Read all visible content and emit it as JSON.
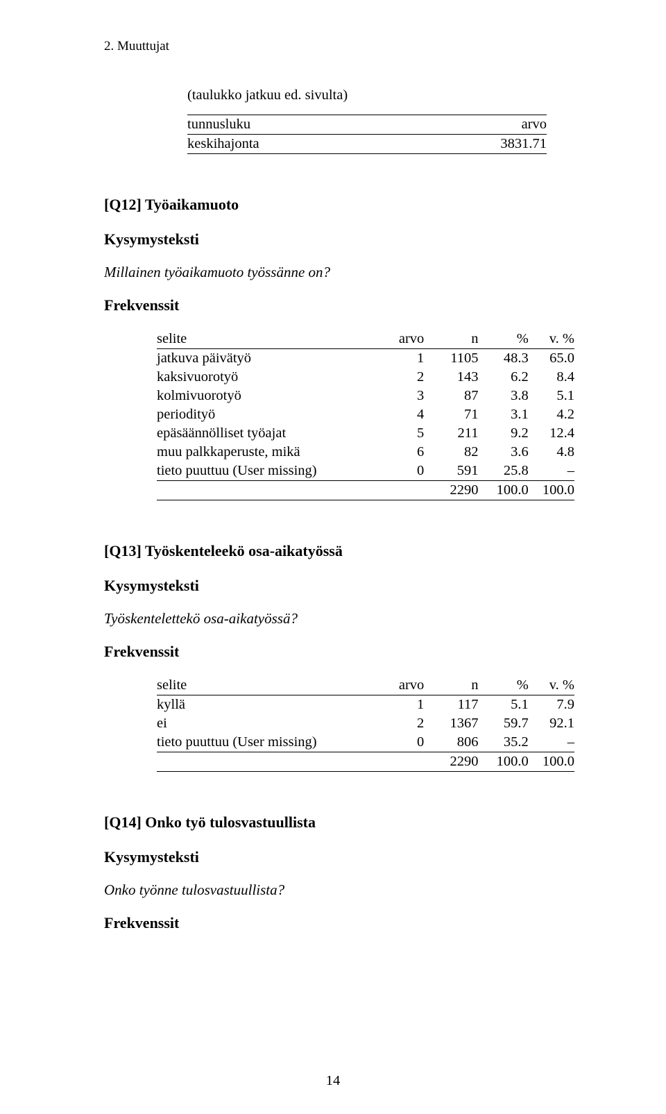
{
  "running_head": "2. Muuttujat",
  "cont_caption": "(taulukko jatkuu ed. sivulta)",
  "kv_table": {
    "headers": [
      "tunnusluku",
      "arvo"
    ],
    "rows": [
      {
        "label": "keskihajonta",
        "value": "3831.71"
      }
    ]
  },
  "q12": {
    "title": "[Q12] Työaikamuoto",
    "kys_label": "Kysymysteksti",
    "question": "Millainen työaikamuoto työssänne on?",
    "freq_label": "Frekvenssit",
    "headers": {
      "selite": "selite",
      "arvo": "arvo",
      "n": "n",
      "pct": "%",
      "vpct": "v. %"
    },
    "rows": [
      {
        "selite": "jatkuva päivätyö",
        "arvo": "1",
        "n": "1105",
        "pct": "48.3",
        "vpct": "65.0"
      },
      {
        "selite": "kaksivuorotyö",
        "arvo": "2",
        "n": "143",
        "pct": "6.2",
        "vpct": "8.4"
      },
      {
        "selite": "kolmivuorotyö",
        "arvo": "3",
        "n": "87",
        "pct": "3.8",
        "vpct": "5.1"
      },
      {
        "selite": "periodityö",
        "arvo": "4",
        "n": "71",
        "pct": "3.1",
        "vpct": "4.2"
      },
      {
        "selite": "epäsäännölliset työajat",
        "arvo": "5",
        "n": "211",
        "pct": "9.2",
        "vpct": "12.4"
      },
      {
        "selite": "muu palkkaperuste, mikä",
        "arvo": "6",
        "n": "82",
        "pct": "3.6",
        "vpct": "4.8"
      },
      {
        "selite": "tieto puuttuu (User missing)",
        "arvo": "0",
        "n": "591",
        "pct": "25.8",
        "vpct": "–"
      }
    ],
    "total": {
      "n": "2290",
      "pct": "100.0",
      "vpct": "100.0"
    }
  },
  "q13": {
    "title": "[Q13] Työskenteleekö osa-aikatyössä",
    "kys_label": "Kysymysteksti",
    "question": "Työskentelettekö osa-aikatyössä?",
    "freq_label": "Frekvenssit",
    "headers": {
      "selite": "selite",
      "arvo": "arvo",
      "n": "n",
      "pct": "%",
      "vpct": "v. %"
    },
    "rows": [
      {
        "selite": "kyllä",
        "arvo": "1",
        "n": "117",
        "pct": "5.1",
        "vpct": "7.9"
      },
      {
        "selite": "ei",
        "arvo": "2",
        "n": "1367",
        "pct": "59.7",
        "vpct": "92.1"
      },
      {
        "selite": "tieto puuttuu (User missing)",
        "arvo": "0",
        "n": "806",
        "pct": "35.2",
        "vpct": "–"
      }
    ],
    "total": {
      "n": "2290",
      "pct": "100.0",
      "vpct": "100.0"
    }
  },
  "q14": {
    "title": "[Q14] Onko työ tulosvastuullista",
    "kys_label": "Kysymysteksti",
    "question": "Onko työnne tulosvastuullista?",
    "freq_label": "Frekvenssit"
  },
  "page_number": "14"
}
